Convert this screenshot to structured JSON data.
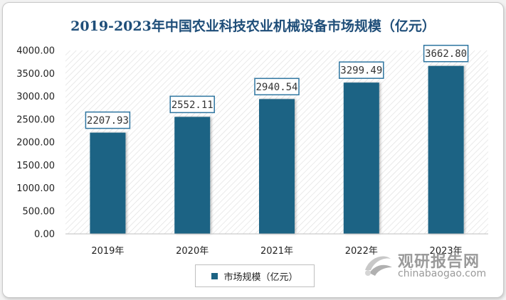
{
  "chart_data": {
    "type": "bar",
    "title": "2019-2023年中国农业科技农业机械设备市场规模（亿元）",
    "categories": [
      "2019年",
      "2020年",
      "2021年",
      "2022年",
      "2023年"
    ],
    "series": [
      {
        "name": "市场规模（亿元）",
        "values": [
          2207.93,
          2552.11,
          2940.54,
          3299.49,
          3662.8
        ],
        "labels": [
          "2207.93",
          "2552.11",
          "2940.54",
          "3299.49",
          "3662.80"
        ]
      }
    ],
    "y_ticks": [
      "0.00",
      "500.00",
      "1000.00",
      "1500.00",
      "2000.00",
      "2500.00",
      "3000.00",
      "3500.00",
      "4000.00"
    ],
    "ylim": [
      0,
      4000
    ],
    "xlabel": "",
    "ylabel": "",
    "legend_position": "bottom",
    "grid": false,
    "bar_color": "#1c6384",
    "label_border_color": "#2e75a0"
  },
  "watermark": {
    "text_cn": "观研报告网",
    "text_en": "chinabaogao.com"
  }
}
